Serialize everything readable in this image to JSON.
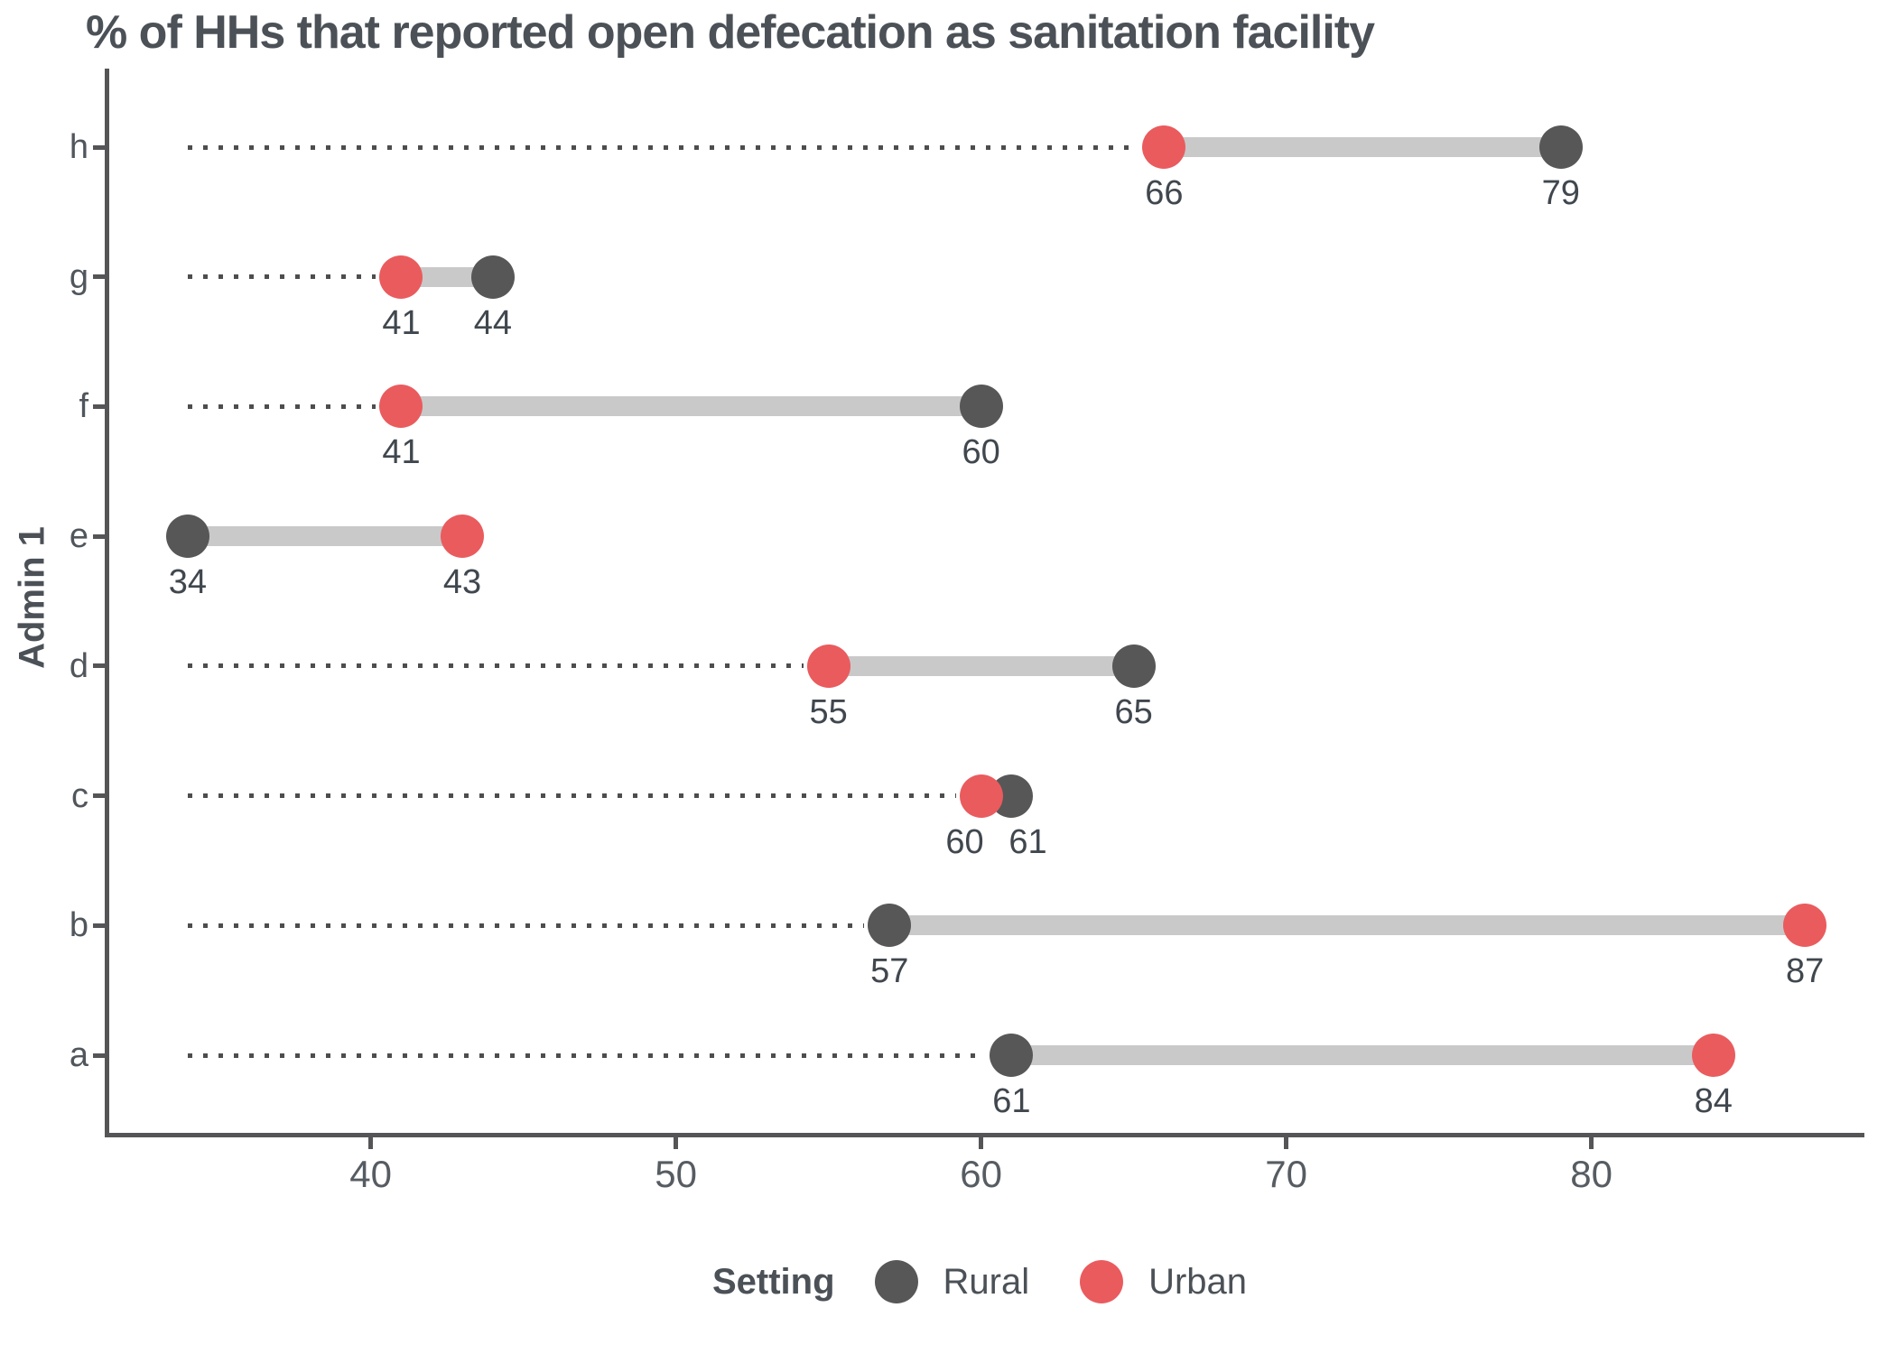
{
  "chart_data": {
    "type": "dumbbell",
    "title": "% of HHs that reported open defecation as sanitation facility",
    "ylabel": "Admin 1",
    "xlabel": "",
    "categories": [
      "h",
      "g",
      "f",
      "e",
      "d",
      "c",
      "b",
      "a"
    ],
    "series": [
      {
        "name": "Rural",
        "color": "#575757",
        "values": [
          79,
          44,
          60,
          34,
          65,
          61,
          57,
          61
        ]
      },
      {
        "name": "Urban",
        "color": "#EA5B5E",
        "values": [
          66,
          41,
          41,
          43,
          55,
          60,
          87,
          84
        ]
      }
    ],
    "value_labels_shown": true,
    "x_axis": {
      "ticks": [
        40,
        50,
        60,
        70,
        80
      ],
      "min": 31.4,
      "max": 88.8
    },
    "grid": "off",
    "legend": {
      "title": "Setting",
      "position": "bottom"
    },
    "styles": {
      "connector_color": "#C9C9C9",
      "leader_color": "#4d4d4d",
      "axis_color": "#555557",
      "text_color": "#4b5157",
      "value_label_color": "#40474e"
    }
  }
}
